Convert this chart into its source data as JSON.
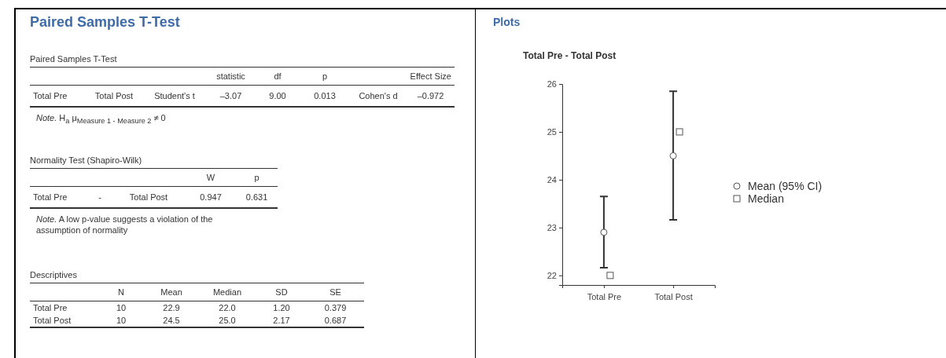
{
  "chart_data": [
    {
      "type": "other",
      "title": "Paired Samples T-Test",
      "subtitle": "Paired Samples T-Test",
      "categories": [
        null,
        null,
        null,
        "statistic",
        "df",
        "p",
        null,
        "Effect Size"
      ],
      "cells": [
        [
          "Total Pre",
          "Total Post",
          "Student's t",
          "–3.07",
          "9.00",
          "0.013",
          "Cohen's d",
          "–0.972"
        ]
      ],
      "annotations": [
        "Note. H$_{a}$ μ$_{Measure 1 - Measure 2}$ ≠ 0"
      ]
    },
    {
      "type": "other",
      "subtitle": "Normality Test (Shapiro-Wilk)",
      "categories": [
        null,
        null,
        null,
        "W",
        "p"
      ],
      "cells": [
        [
          "Total Pre",
          "-",
          "Total Post",
          "0.947",
          "0.631"
        ]
      ],
      "annotations": [
        "Note. A low p-value suggests a violation of the assumption of normality"
      ]
    },
    {
      "type": "other",
      "subtitle": "Descriptives",
      "categories": [
        null,
        "N",
        "Mean",
        "Median",
        "SD",
        "SE"
      ],
      "cells": [
        [
          "Total Pre",
          "10",
          "22.9",
          "22.0",
          "1.20",
          "0.379"
        ],
        [
          "Total Post",
          "10",
          "24.5",
          "25.0",
          "2.17",
          "0.687"
        ]
      ]
    },
    {
      "type": "scatter",
      "title": "Plots",
      "subtitle": "Total Pre - Total Post",
      "categories": [
        "Total Pre",
        "Total Post"
      ],
      "ylim": [
        21.8,
        26
      ],
      "yticks": [
        22,
        23,
        24,
        25,
        26
      ],
      "grid": false,
      "legend": "right",
      "series": [
        {
          "name": "Mean (95% CI)",
          "color": "#555555",
          "marker": "circle",
          "values": [
            22.9,
            24.5
          ],
          "errors": [
            [
              22.16,
              23.65
            ],
            [
              23.16,
              25.85
            ]
          ]
        },
        {
          "name": "Median",
          "color": "#555555",
          "marker": "square",
          "values": [
            22,
            25
          ]
        }
      ]
    }
  ]
}
